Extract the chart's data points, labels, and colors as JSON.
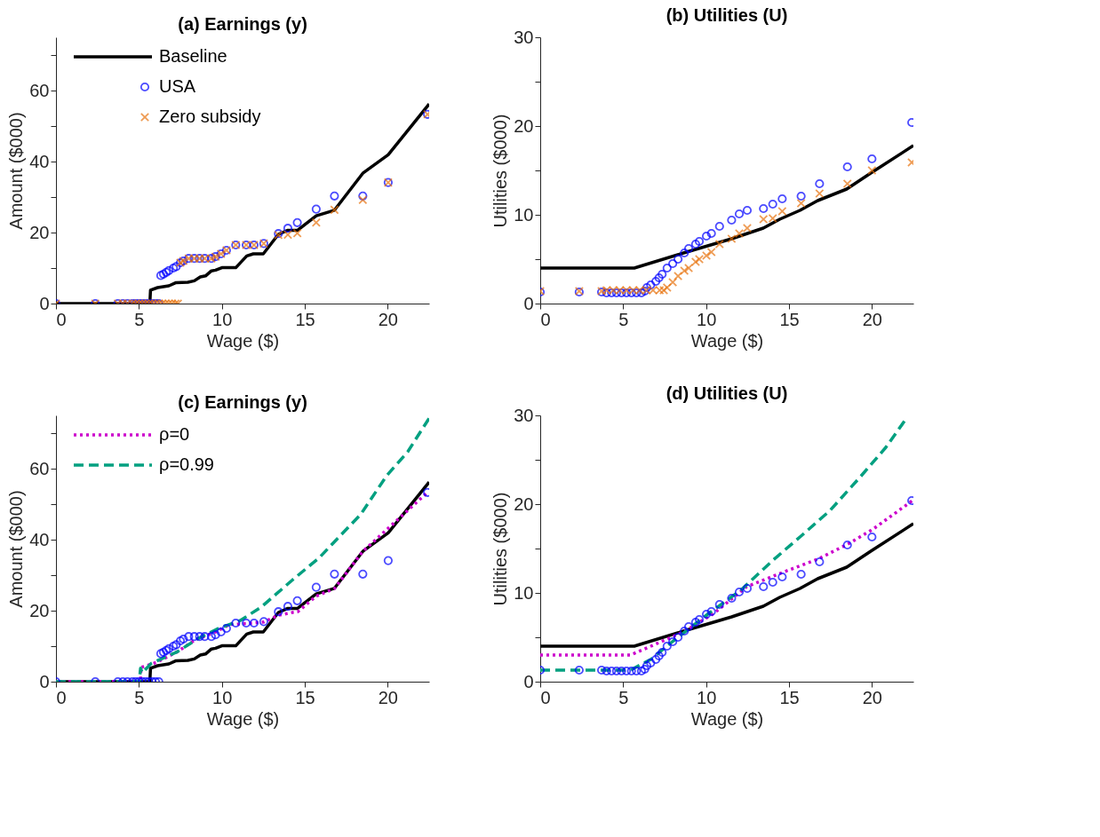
{
  "chart_data": [
    {
      "type": "line",
      "title": "(a) Earnings (y)",
      "xlabel": "Wage ($)",
      "ylabel": "Amount ($000)",
      "xlim": [
        0,
        22.5
      ],
      "ylim": [
        0,
        75
      ],
      "xticks": [
        0,
        5,
        10,
        15,
        20
      ],
      "yticks": [
        0,
        {
          "value": 10,
          "label": null
        },
        20,
        {
          "value": 30,
          "label": null
        },
        40,
        {
          "value": 50,
          "label": null
        },
        60,
        {
          "value": 70,
          "label": null
        }
      ],
      "legend": "top left",
      "series": [
        {
          "name": "Baseline",
          "color": "#000000",
          "line_style": "solid",
          "marker": "none",
          "x": [
            0,
            5.66,
            5.7,
            6.13,
            6.81,
            7.24,
            7.95,
            8.34,
            8.7,
            9.02,
            9.37,
            9.62,
            10.0,
            10.84,
            11.5,
            11.9,
            12.5,
            13.41,
            13.95,
            14.55,
            15.69,
            16.79,
            18.5,
            20.03,
            22.5
          ],
          "values": [
            0,
            0,
            3.8,
            4.5,
            5.0,
            5.9,
            6.0,
            6.4,
            7.5,
            7.8,
            9.2,
            9.4,
            10.1,
            10.1,
            13.4,
            14.0,
            14.0,
            19.5,
            20.6,
            20.6,
            24.7,
            26.3,
            36.7,
            41.9,
            56.2
          ]
        },
        {
          "name": "USA",
          "type": "scatter",
          "color": "#0000ff",
          "marker": "circle",
          "x": [
            0,
            2.37,
            3.73,
            4.03,
            4.31,
            4.6,
            4.8,
            5.0,
            5.2,
            5.4,
            5.6,
            5.8,
            6.0,
            6.2,
            6.32,
            6.48,
            6.65,
            6.81,
            7.08,
            7.25,
            7.5,
            7.68,
            8.0,
            8.34,
            8.66,
            8.97,
            9.37,
            9.62,
            9.95,
            10.28,
            10.84,
            11.47,
            11.94,
            12.53,
            13.41,
            13.98,
            14.55,
            15.69,
            16.79,
            18.5,
            20.03,
            22.4
          ],
          "values": [
            0,
            0,
            0,
            0,
            0,
            0,
            0,
            0,
            0,
            0,
            0,
            0,
            0,
            0,
            7.9,
            8.3,
            8.8,
            9.3,
            10.0,
            10.4,
            11.5,
            12.0,
            12.7,
            12.7,
            12.7,
            12.7,
            12.7,
            13.2,
            14.0,
            15.0,
            16.5,
            16.5,
            16.5,
            16.9,
            19.7,
            21.2,
            22.8,
            26.6,
            30.3,
            30.3,
            34.1,
            53.3
          ]
        },
        {
          "name": "Zero subsidy",
          "type": "scatter",
          "color": "#e8720c",
          "marker": "cross",
          "x": [
            0,
            2.37,
            3.73,
            4.03,
            4.31,
            4.6,
            4.8,
            5.0,
            5.2,
            5.4,
            5.6,
            5.8,
            6.0,
            6.2,
            6.4,
            6.6,
            6.8,
            7.0,
            7.2,
            7.35,
            7.5,
            7.68,
            8.0,
            8.34,
            8.66,
            8.97,
            9.37,
            9.62,
            9.95,
            10.28,
            10.84,
            11.47,
            11.94,
            12.53,
            13.41,
            13.98,
            14.55,
            15.69,
            16.79,
            18.5,
            20.03,
            22.4
          ],
          "values": [
            0,
            0,
            0,
            0,
            0,
            0,
            0,
            0,
            0,
            0,
            0,
            0,
            0,
            0,
            0,
            0,
            0,
            0,
            0,
            0,
            11.5,
            12.0,
            12.7,
            12.7,
            12.7,
            12.7,
            12.7,
            13.2,
            14.0,
            15.0,
            16.5,
            16.5,
            16.5,
            16.9,
            19.3,
            19.4,
            19.8,
            22.8,
            26.4,
            29.2,
            34.1,
            53.3
          ]
        }
      ]
    },
    {
      "type": "line",
      "title": "(b) Utilities (U)",
      "xlabel": "Wage ($)",
      "ylabel": "Utilities ($000)",
      "xlim": [
        0,
        22.5
      ],
      "ylim": [
        0,
        30
      ],
      "xticks": [
        0,
        5,
        10,
        15,
        20
      ],
      "yticks": [
        0,
        {
          "value": 5,
          "label": null
        },
        10,
        {
          "value": 15,
          "label": null
        },
        20,
        {
          "value": 25,
          "label": null
        },
        30
      ],
      "series": [
        {
          "color": "#000000",
          "line_style": "solid",
          "marker": "none",
          "x": [
            0,
            5.67,
            8.64,
            11.54,
            13.45,
            14.44,
            15.66,
            16.73,
            18.48,
            19.93,
            22.5
          ],
          "values": [
            4.0,
            4.0,
            5.7,
            7.3,
            8.5,
            9.5,
            10.5,
            11.6,
            12.9,
            14.7,
            17.8
          ]
        },
        {
          "type": "scatter",
          "color": "#0000ff",
          "marker": "circle",
          "x": [
            0,
            2.35,
            3.7,
            4.0,
            4.3,
            4.6,
            4.9,
            5.2,
            5.5,
            5.8,
            6.1,
            6.3,
            6.43,
            6.66,
            6.97,
            7.16,
            7.35,
            7.65,
            7.99,
            8.31,
            8.69,
            8.95,
            9.37,
            9.59,
            10.02,
            10.32,
            10.81,
            11.54,
            12.0,
            12.48,
            13.46,
            14.02,
            14.59,
            15.73,
            16.84,
            18.52,
            20.0,
            22.4
          ],
          "values": [
            1.3,
            1.3,
            1.3,
            1.2,
            1.2,
            1.2,
            1.2,
            1.2,
            1.2,
            1.2,
            1.2,
            1.4,
            1.8,
            2.1,
            2.5,
            2.9,
            3.3,
            4.0,
            4.5,
            5.0,
            5.7,
            6.2,
            6.7,
            7.0,
            7.6,
            7.9,
            8.7,
            9.4,
            10.1,
            10.5,
            10.7,
            11.2,
            11.8,
            12.1,
            13.5,
            15.4,
            16.3,
            20.4
          ]
        },
        {
          "type": "scatter",
          "color": "#e8720c",
          "marker": "cross",
          "x": [
            0,
            2.35,
            3.7,
            4.0,
            4.4,
            4.8,
            5.2,
            5.6,
            6.0,
            6.4,
            6.8,
            7.2,
            7.45,
            7.65,
            7.99,
            8.31,
            8.69,
            8.95,
            9.37,
            9.59,
            10.02,
            10.32,
            10.81,
            11.54,
            12.0,
            12.48,
            13.46,
            14.02,
            14.59,
            15.73,
            16.84,
            18.52,
            20.0,
            22.4
          ],
          "values": [
            1.4,
            1.4,
            1.4,
            1.5,
            1.5,
            1.5,
            1.5,
            1.5,
            1.5,
            1.5,
            1.5,
            1.5,
            1.5,
            1.8,
            2.4,
            3.1,
            3.7,
            4.0,
            4.7,
            5.0,
            5.4,
            5.8,
            6.7,
            7.3,
            7.9,
            8.5,
            9.5,
            9.6,
            10.4,
            11.3,
            12.4,
            13.5,
            15.0,
            15.9
          ]
        }
      ]
    },
    {
      "type": "line",
      "title": "(c) Earnings (y)",
      "xlabel": "Wage ($)",
      "ylabel": "Amount ($000)",
      "xlim": [
        0,
        22.5
      ],
      "ylim": [
        0,
        75
      ],
      "xticks": [
        0,
        5,
        10,
        15,
        20
      ],
      "yticks": [
        0,
        {
          "value": 10,
          "label": null
        },
        20,
        {
          "value": 30,
          "label": null
        },
        40,
        {
          "value": 50,
          "label": null
        },
        60,
        {
          "value": 70,
          "label": null
        }
      ],
      "legend": "top left",
      "series": [
        {
          "color": "#000000",
          "line_style": "solid",
          "marker": "none",
          "x": [
            0,
            5.66,
            5.7,
            6.13,
            6.81,
            7.24,
            7.95,
            8.34,
            8.7,
            9.02,
            9.37,
            9.62,
            10.0,
            10.84,
            11.5,
            11.9,
            12.5,
            13.41,
            13.95,
            14.55,
            15.69,
            16.79,
            18.5,
            20.03,
            22.5
          ],
          "values": [
            0,
            0,
            3.8,
            4.5,
            5.0,
            5.9,
            6.0,
            6.4,
            7.5,
            7.8,
            9.2,
            9.4,
            10.1,
            10.1,
            13.4,
            14.0,
            14.0,
            19.5,
            20.6,
            20.6,
            24.7,
            26.3,
            36.7,
            41.9,
            56.2
          ]
        },
        {
          "name": "ρ=0",
          "color": "#cc00cc",
          "line_style": "dotted",
          "marker": "none",
          "x": [
            0,
            5.1,
            5.12,
            6.05,
            7.31,
            8.42,
            9.53,
            10.47,
            11.58,
            12.53,
            13.41,
            14.27,
            14.58,
            15.69,
            16.79,
            18.5,
            20.03,
            22.4
          ],
          "values": [
            0,
            0,
            4.0,
            5.4,
            8.4,
            11.9,
            13.8,
            16.1,
            16.4,
            16.8,
            18.7,
            19.5,
            19.7,
            24.1,
            26.2,
            36.7,
            43.2,
            53.3
          ]
        },
        {
          "name": "ρ=0.99",
          "color": "#00a080",
          "line_style": "dashed",
          "marker": "none",
          "x": [
            0,
            5.02,
            5.1,
            5.2,
            5.73,
            7.31,
            8.58,
            9.84,
            11.1,
            12.37,
            14.27,
            15.85,
            16.95,
            18.37,
            19.95,
            21.2,
            22.5
          ],
          "values": [
            0,
            0,
            3.8,
            2.5,
            5.1,
            8.4,
            12.2,
            15.1,
            17.2,
            21.0,
            28.7,
            34.8,
            40.2,
            47.1,
            58.1,
            64.7,
            74.2
          ]
        },
        {
          "type": "scatter",
          "color": "#0000ff",
          "marker": "circle",
          "x": [
            0,
            2.37,
            3.73,
            4.03,
            4.31,
            4.6,
            4.8,
            5.0,
            5.2,
            5.4,
            5.6,
            5.8,
            6.0,
            6.2,
            6.32,
            6.48,
            6.65,
            6.81,
            7.08,
            7.25,
            7.5,
            7.68,
            8.0,
            8.34,
            8.66,
            8.97,
            9.37,
            9.62,
            9.95,
            10.28,
            10.84,
            11.47,
            11.94,
            12.53,
            13.41,
            13.98,
            14.55,
            15.69,
            16.79,
            18.5,
            20.03,
            22.4
          ],
          "values": [
            0,
            0,
            0,
            0,
            0,
            0,
            0,
            0,
            0,
            0,
            0,
            0,
            0,
            0,
            7.9,
            8.3,
            8.8,
            9.3,
            10.0,
            10.4,
            11.5,
            12.0,
            12.7,
            12.7,
            12.7,
            12.7,
            12.7,
            13.2,
            14.0,
            15.0,
            16.5,
            16.5,
            16.5,
            16.9,
            19.7,
            21.2,
            22.8,
            26.6,
            30.3,
            30.3,
            34.1,
            53.3
          ]
        }
      ]
    },
    {
      "type": "line",
      "title": "(d) Utilities (U)",
      "xlabel": "Wage ($)",
      "ylabel": "Utilities ($000)",
      "xlim": [
        0,
        22.5
      ],
      "ylim": [
        0,
        30
      ],
      "xticks": [
        0,
        5,
        10,
        15,
        20
      ],
      "yticks": [
        0,
        {
          "value": 5,
          "label": null
        },
        10,
        {
          "value": 15,
          "label": null
        },
        20,
        {
          "value": 25,
          "label": null
        },
        30
      ],
      "series": [
        {
          "color": "#000000",
          "line_style": "solid",
          "marker": "none",
          "x": [
            0,
            5.67,
            8.64,
            11.54,
            13.45,
            14.44,
            15.66,
            16.73,
            18.48,
            19.93,
            22.5
          ],
          "values": [
            4.0,
            4.0,
            5.7,
            7.3,
            8.5,
            9.5,
            10.5,
            11.6,
            12.9,
            14.7,
            17.8
          ]
        },
        {
          "color": "#cc00cc",
          "line_style": "dotted",
          "marker": "none",
          "x": [
            0,
            5.44,
            8.64,
            10.47,
            12.45,
            14.74,
            16.73,
            18.55,
            20.08,
            22.44
          ],
          "values": [
            3.0,
            3.0,
            5.6,
            7.7,
            10.7,
            12.4,
            13.8,
            15.5,
            17.2,
            20.4
          ]
        },
        {
          "color": "#00a080",
          "line_style": "dashed",
          "marker": "none",
          "x": [
            0,
            5.44,
            6.66,
            8.03,
            10.17,
            12.15,
            13.98,
            15.66,
            17.48,
            19.31,
            20.84,
            22.13
          ],
          "values": [
            1.3,
            1.3,
            2.5,
            4.6,
            7.7,
            10.4,
            13.6,
            16.3,
            19.3,
            23.1,
            26.4,
            29.8
          ]
        },
        {
          "type": "scatter",
          "color": "#0000ff",
          "marker": "circle",
          "x": [
            0,
            2.35,
            3.7,
            4.0,
            4.3,
            4.6,
            4.9,
            5.2,
            5.5,
            5.8,
            6.1,
            6.3,
            6.43,
            6.66,
            6.97,
            7.16,
            7.35,
            7.65,
            7.99,
            8.31,
            8.69,
            8.95,
            9.37,
            9.59,
            10.02,
            10.32,
            10.81,
            11.54,
            12.0,
            12.48,
            13.46,
            14.02,
            14.59,
            15.73,
            16.84,
            18.52,
            20.0,
            22.4
          ],
          "values": [
            1.3,
            1.3,
            1.3,
            1.2,
            1.2,
            1.2,
            1.2,
            1.2,
            1.2,
            1.2,
            1.2,
            1.4,
            1.8,
            2.1,
            2.5,
            2.9,
            3.3,
            4.0,
            4.5,
            5.0,
            5.7,
            6.2,
            6.7,
            7.0,
            7.6,
            7.9,
            8.7,
            9.4,
            10.1,
            10.5,
            10.7,
            11.2,
            11.8,
            12.1,
            13.5,
            15.4,
            16.3,
            20.4
          ]
        }
      ]
    }
  ]
}
